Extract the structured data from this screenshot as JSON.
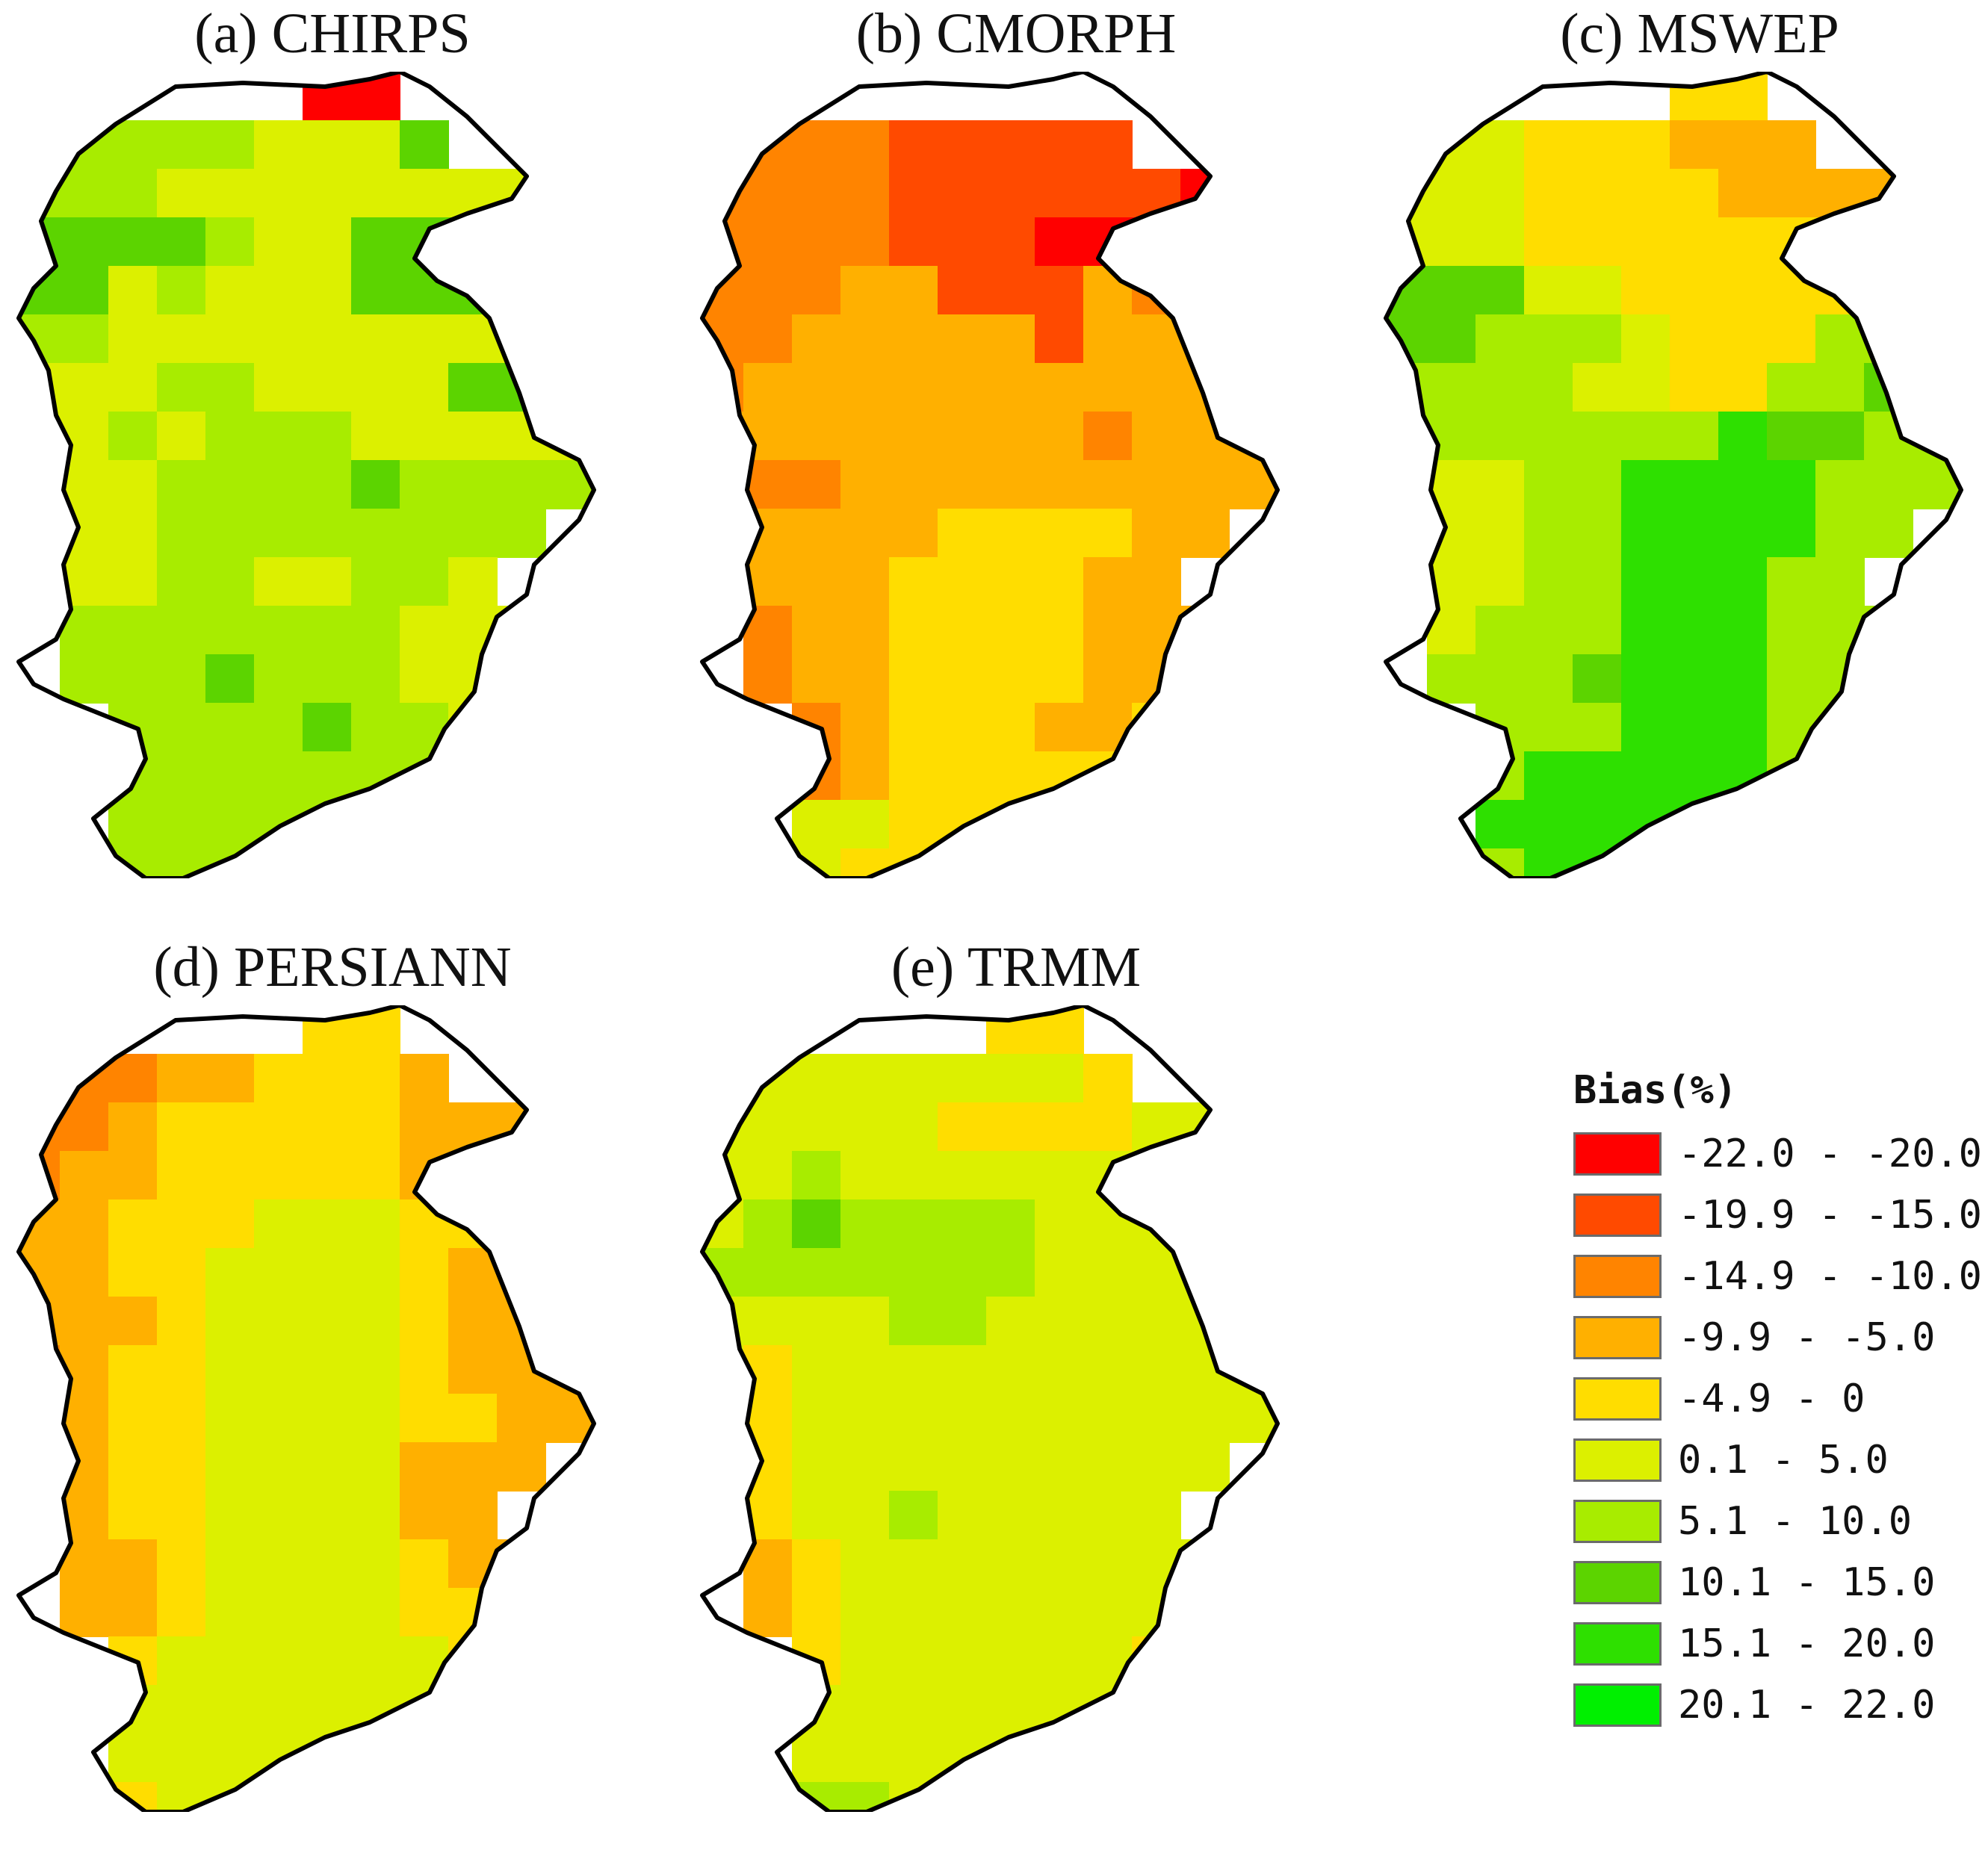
{
  "figure": {
    "panels": [
      {
        "id": "a",
        "title": "(a) CHIRPS"
      },
      {
        "id": "b",
        "title": "(b) CMORPH"
      },
      {
        "id": "c",
        "title": "(c) MSWEP"
      },
      {
        "id": "d",
        "title": "(d) PERSIANN"
      },
      {
        "id": "e",
        "title": "(e) TRMM"
      }
    ],
    "legend": {
      "title": "Bias(%)",
      "classes": [
        {
          "label": "-22.0 - -20.0",
          "color": "#ff0000"
        },
        {
          "label": "-19.9 - -15.0",
          "color": "#ff4a00"
        },
        {
          "label": "-14.9 - -10.0",
          "color": "#ff8400"
        },
        {
          "label": "-9.9 - -5.0",
          "color": "#ffb000"
        },
        {
          "label": "-4.9 - 0",
          "color": "#ffdd00"
        },
        {
          "label": "0.1 - 5.0",
          "color": "#dcf000"
        },
        {
          "label": "5.1 - 10.0",
          "color": "#a8ec00"
        },
        {
          "label": "10.1 - 15.0",
          "color": "#5cd400"
        },
        {
          "label": "15.1 - 20.0",
          "color": "#2ee000"
        },
        {
          "label": "20.1 - 22.0",
          "color": "#00f000"
        }
      ]
    }
  },
  "chart_data": [
    {
      "type": "heatmap",
      "title": "(a) CHIRPS",
      "value_unit": "Bias (%)",
      "grid": [
        "......00.",
        ".66665557.",
        "66655555555",
        "77776557775",
        "77565557775",
        "66555555555",
        "55566555577",
        "556566655555",
        "555666676666",
        "55566666666",
        "5556655665",
        ".6666666555",
        ".6667666556",
        "..66667665",
        "..6666666",
        "..666666",
        ".6666",
        ".66"
      ]
    },
    {
      "type": "heatmap",
      "title": "(b) CMORPH",
      "value_unit": "Bias (%)",
      "grid": [
        "........",
        ".22211111",
        "22221111110",
        "22221110000",
        "22233111322",
        "22333331333",
        "23333333333",
        "333333332333",
        "322333333333",
        "33333444433",
        "2333444433",
        ".2334444333",
        ".2334444333",
        "..23444334",
        "..2344444",
        "..554444",
        ".5544",
        ".44"
      ]
    },
    {
      "type": "heatmap",
      "title": "(c) MSWEP",
      "value_unit": "Bias (%)",
      "grid": [
        "......44.",
        ".55444333",
        "55544443333",
        "55544444444",
        "77755444445",
        "77666544466",
        "66665544667",
        "666666687766",
        "555668888666",
        "55566888866",
        "5556688866",
        ".5666888666",
        ".6667888666",
        "..66688866",
        "..6888886",
        "..888888",
        ".6688",
        ".66"
      ]
    },
    {
      "type": "heatmap",
      "title": "(d) PERSIANN",
      "value_unit": "Bias (%)",
      "grid": [
        "......44.",
        ".22334443",
        "22344444333",
        "23344444333",
        "33444555444",
        "33445555433",
        "33345555433",
        "234455554333",
        "334455554433",
        "33445555333",
        "3344555533",
        ".3345555433",
        ".3345555443",
        "..45555554",
        "..5555555",
        "..555555",
        ".5455",
        ".44"
      ]
    },
    {
      "type": "heatmap",
      "title": "(e) TRMM",
      "value_unit": "Bias (%)",
      "grid": [
        "......44.",
        ".55555554",
        "55555444455",
        "55655555555",
        "56766665555",
        "66666665555",
        "55556655555",
        "545555555555",
        "445555555555",
        "34555555555",
        "3455655555",
        ".3455555555",
        ".3455555555",
        "..45555554",
        "..5555555",
        "..555555",
        ".5665",
        ".44"
      ]
    }
  ]
}
